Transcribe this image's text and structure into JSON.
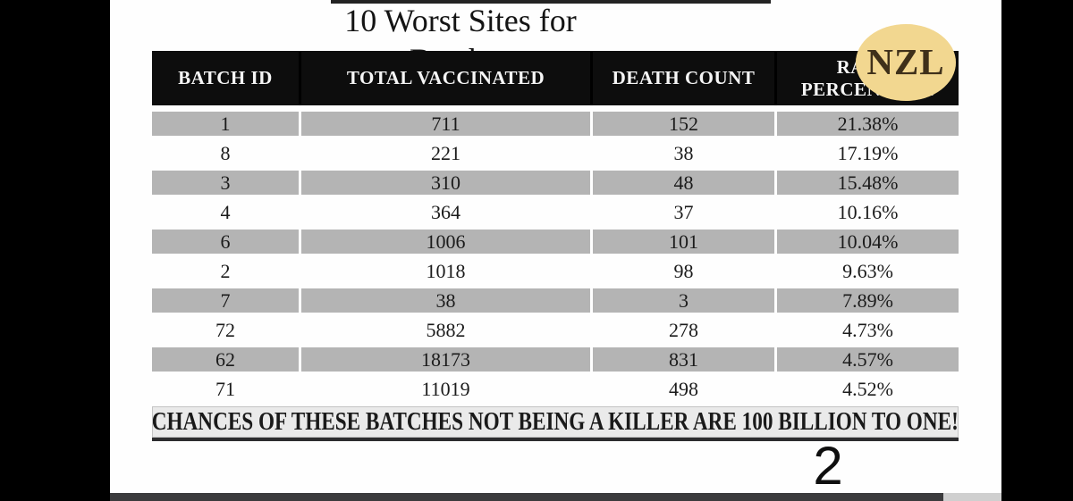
{
  "slide": {
    "title_line1": "10 Worst Sites for",
    "title_line2": "Batches",
    "page_number": "2",
    "logo_text": "NZL"
  },
  "table": {
    "columns": [
      "BATCH ID",
      "TOTAL VACCINATED",
      "DEATH COUNT",
      "RATIO PERCENTAGE"
    ],
    "rows": [
      {
        "batch_id": "1",
        "total_vaccinated": "711",
        "death_count": "152",
        "ratio_percentage": "21.38%"
      },
      {
        "batch_id": "8",
        "total_vaccinated": "221",
        "death_count": "38",
        "ratio_percentage": "17.19%"
      },
      {
        "batch_id": "3",
        "total_vaccinated": "310",
        "death_count": "48",
        "ratio_percentage": "15.48%"
      },
      {
        "batch_id": "4",
        "total_vaccinated": "364",
        "death_count": "37",
        "ratio_percentage": "10.16%"
      },
      {
        "batch_id": "6",
        "total_vaccinated": "1006",
        "death_count": "101",
        "ratio_percentage": "10.04%"
      },
      {
        "batch_id": "2",
        "total_vaccinated": "1018",
        "death_count": "98",
        "ratio_percentage": "9.63%"
      },
      {
        "batch_id": "7",
        "total_vaccinated": "38",
        "death_count": "3",
        "ratio_percentage": "7.89%"
      },
      {
        "batch_id": "72",
        "total_vaccinated": "5882",
        "death_count": "278",
        "ratio_percentage": "4.73%"
      },
      {
        "batch_id": "62",
        "total_vaccinated": "18173",
        "death_count": "831",
        "ratio_percentage": "4.57%"
      },
      {
        "batch_id": "71",
        "total_vaccinated": "11019",
        "death_count": "498",
        "ratio_percentage": "4.52%"
      }
    ],
    "footer_note": "CHANCES OF THESE BATCHES NOT BEING A KILLER ARE 100 BILLION TO ONE!"
  },
  "colors": {
    "header_bg": "#0d0d0d",
    "shaded_row": "#b4b4b4",
    "footer_band_bg": "#eaeaea",
    "logo_gold": "#f1d68e",
    "pillarbox": "#000000"
  }
}
